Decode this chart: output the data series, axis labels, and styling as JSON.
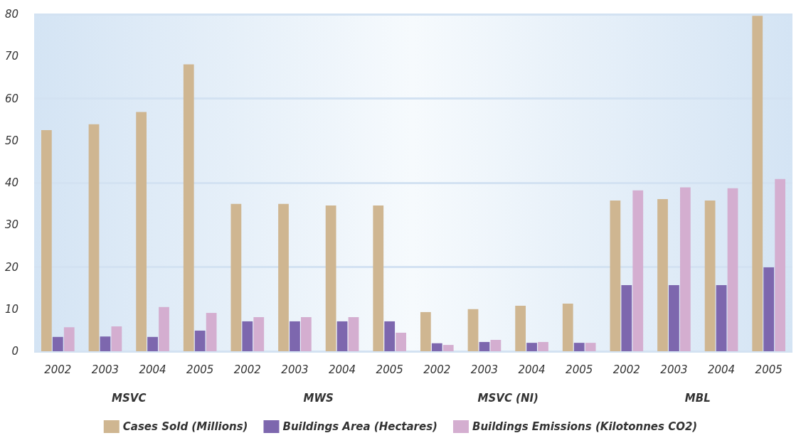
{
  "chart_data": {
    "type": "bar",
    "categories": [
      "2002",
      "2003",
      "2004",
      "2005",
      "2002",
      "2003",
      "2004",
      "2005",
      "2002",
      "2003",
      "2004",
      "2005",
      "2002",
      "2003",
      "2004",
      "2005"
    ],
    "annotations": [
      "MSVC",
      "MWS",
      "MSVC (NI)",
      "MBL"
    ],
    "series": [
      {
        "name": "Cases Sold (Millions)",
        "color": "#cfb691",
        "values": [
          52.5,
          53.9,
          56.8,
          68.1,
          35.0,
          35.0,
          34.6,
          34.6,
          9.3,
          10.0,
          10.8,
          11.3,
          35.8,
          36.1,
          35.8,
          79.6
        ]
      },
      {
        "name": "Buildings Area (Hectares)",
        "color": "#7d67ae",
        "values": [
          3.4,
          3.5,
          3.4,
          4.9,
          7.1,
          7.1,
          7.1,
          7.1,
          1.9,
          2.2,
          2.0,
          2.0,
          15.7,
          15.7,
          15.7,
          19.9
        ]
      },
      {
        "name": "Buildings Emissions (Kilotonnes CO2)",
        "color": "#d4aed0",
        "values": [
          5.7,
          5.9,
          10.5,
          9.1,
          8.1,
          8.1,
          8.1,
          4.4,
          1.5,
          2.7,
          2.2,
          2.0,
          38.2,
          38.9,
          38.7,
          40.9
        ]
      }
    ],
    "ylim": [
      0,
      80
    ],
    "yticks": [
      0,
      10,
      20,
      30,
      40,
      50,
      60,
      70,
      80
    ],
    "grid": "y",
    "legend": "bottom"
  }
}
